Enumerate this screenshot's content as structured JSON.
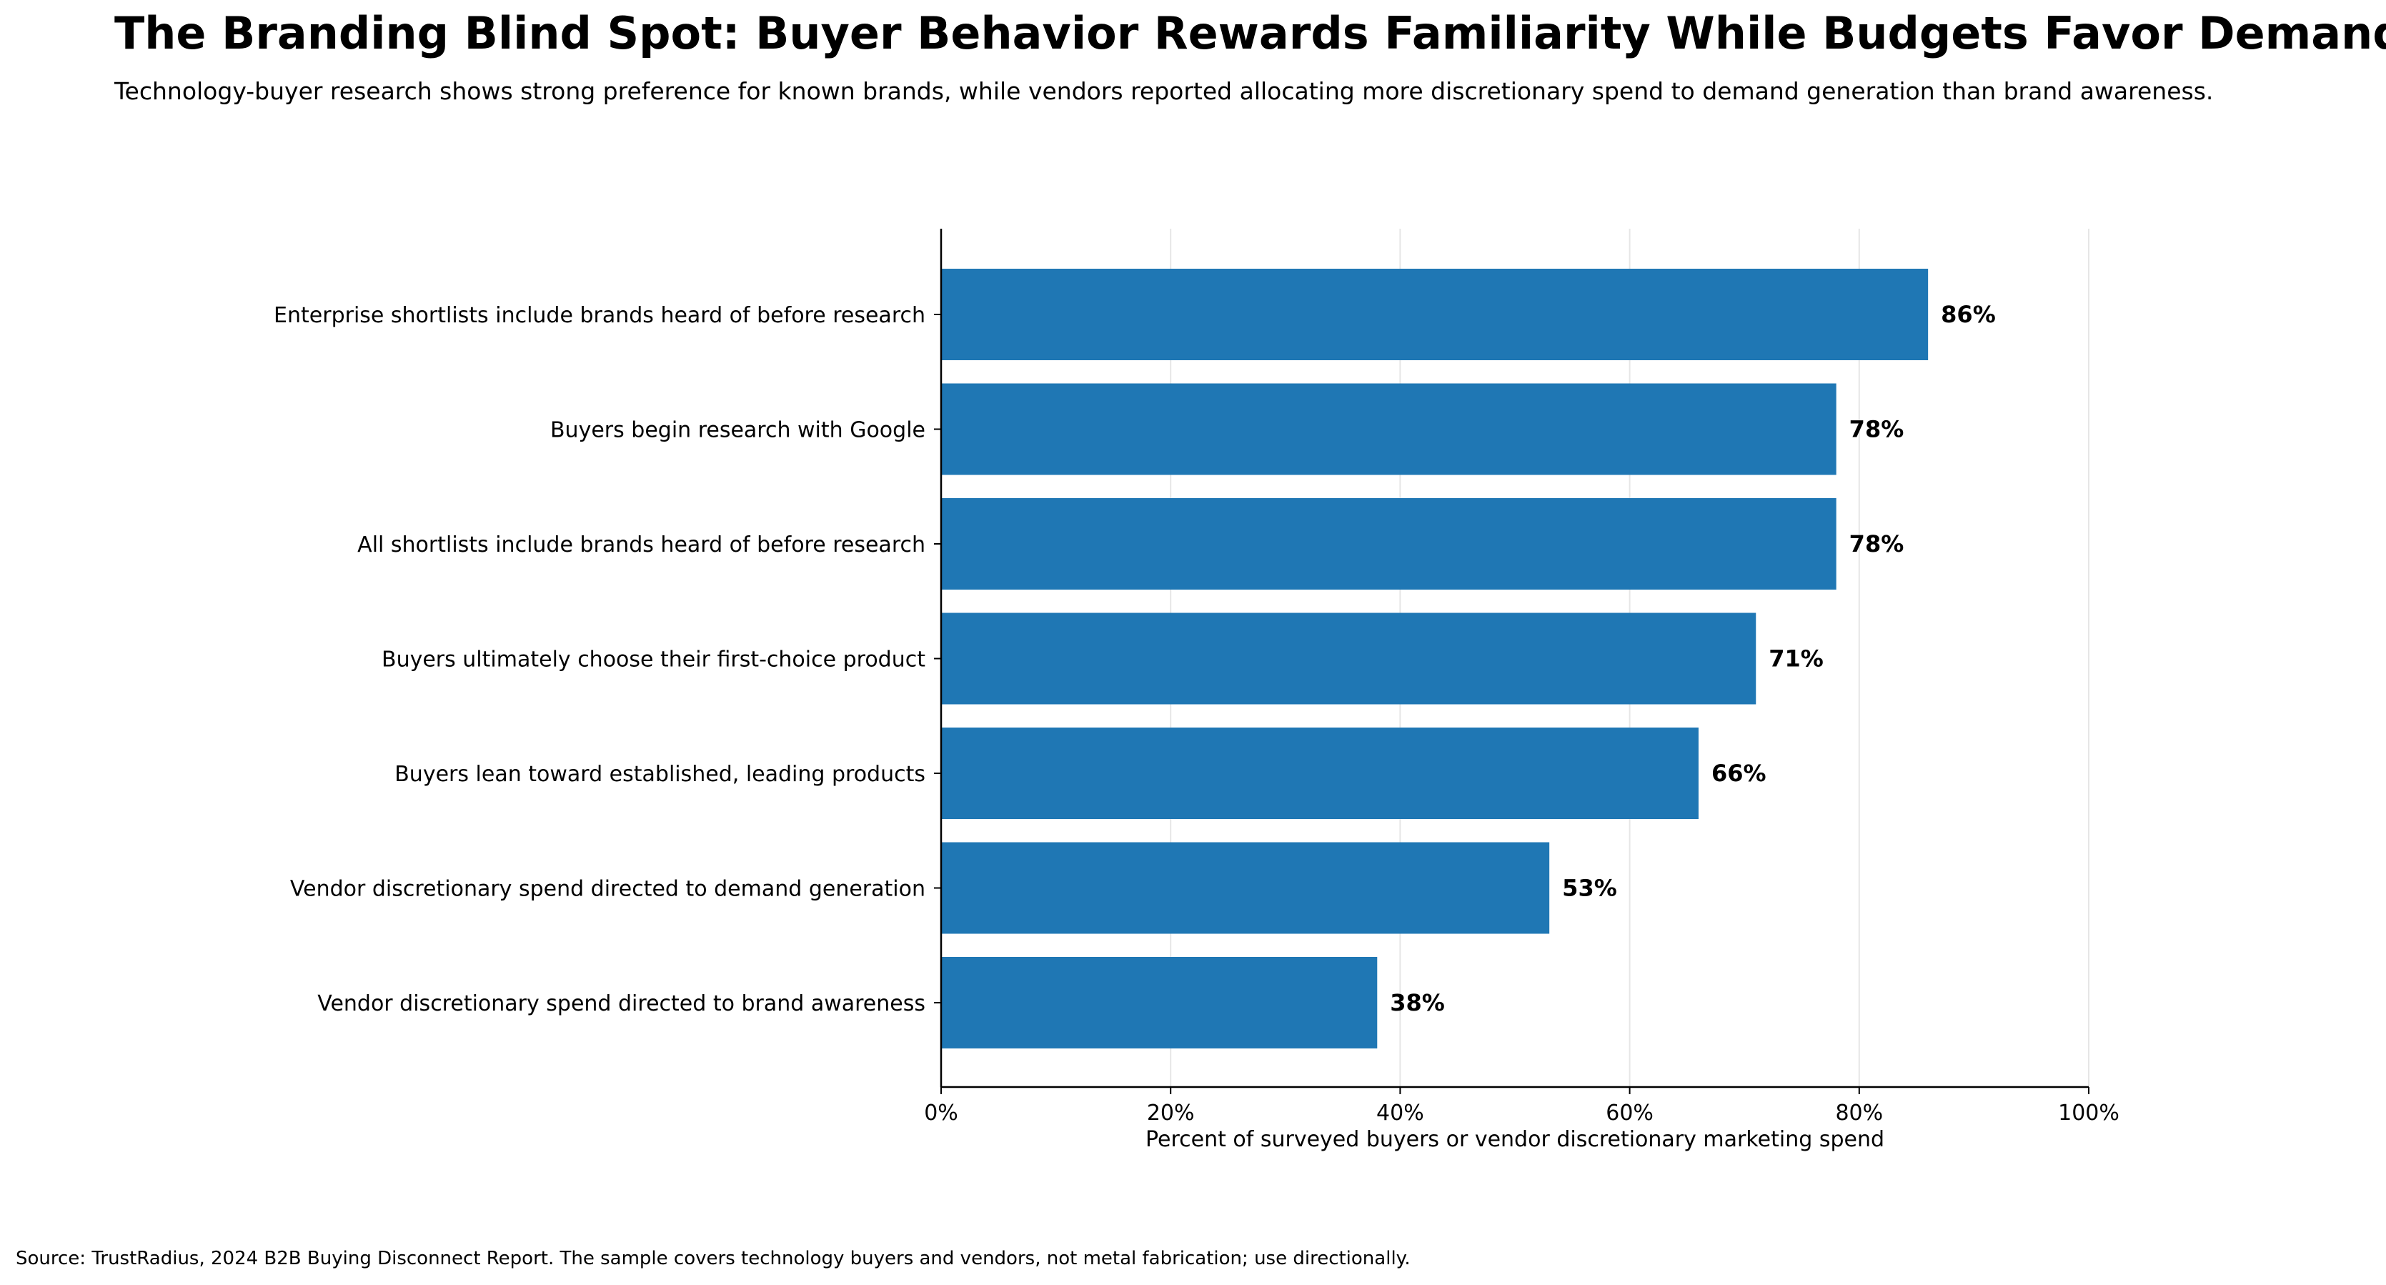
{
  "chart_data": {
    "type": "bar",
    "orientation": "horizontal",
    "title": "The Branding Blind Spot: Buyer Behavior Rewards Familiarity While Budgets Favor Demand",
    "subtitle": "Technology-buyer research shows strong preference for known brands, while vendors reported allocating more discretionary spend to demand generation than brand awareness.",
    "xlabel": "Percent of surveyed buyers or vendor discretionary marketing spend",
    "ylabel": "",
    "xlim": [
      0,
      100
    ],
    "x_ticks": [
      "0%",
      "20%",
      "40%",
      "60%",
      "80%",
      "100%"
    ],
    "grid": "vertical",
    "bar_color": "#1f77b4",
    "categories": [
      "Enterprise shortlists include brands heard of before research",
      "Buyers begin research with Google",
      "All shortlists include brands heard of before research",
      "Buyers ultimately choose their first-choice product",
      "Buyers lean toward established, leading products",
      "Vendor discretionary spend directed to demand generation",
      "Vendor discretionary spend directed to brand awareness"
    ],
    "values": [
      86,
      78,
      78,
      71,
      66,
      53,
      38
    ],
    "data_labels": [
      "86%",
      "78%",
      "78%",
      "71%",
      "66%",
      "53%",
      "38%"
    ],
    "source": "Source: TrustRadius, 2024 B2B Buying Disconnect Report. The sample covers technology buyers and vendors, not metal fabrication; use directionally."
  }
}
